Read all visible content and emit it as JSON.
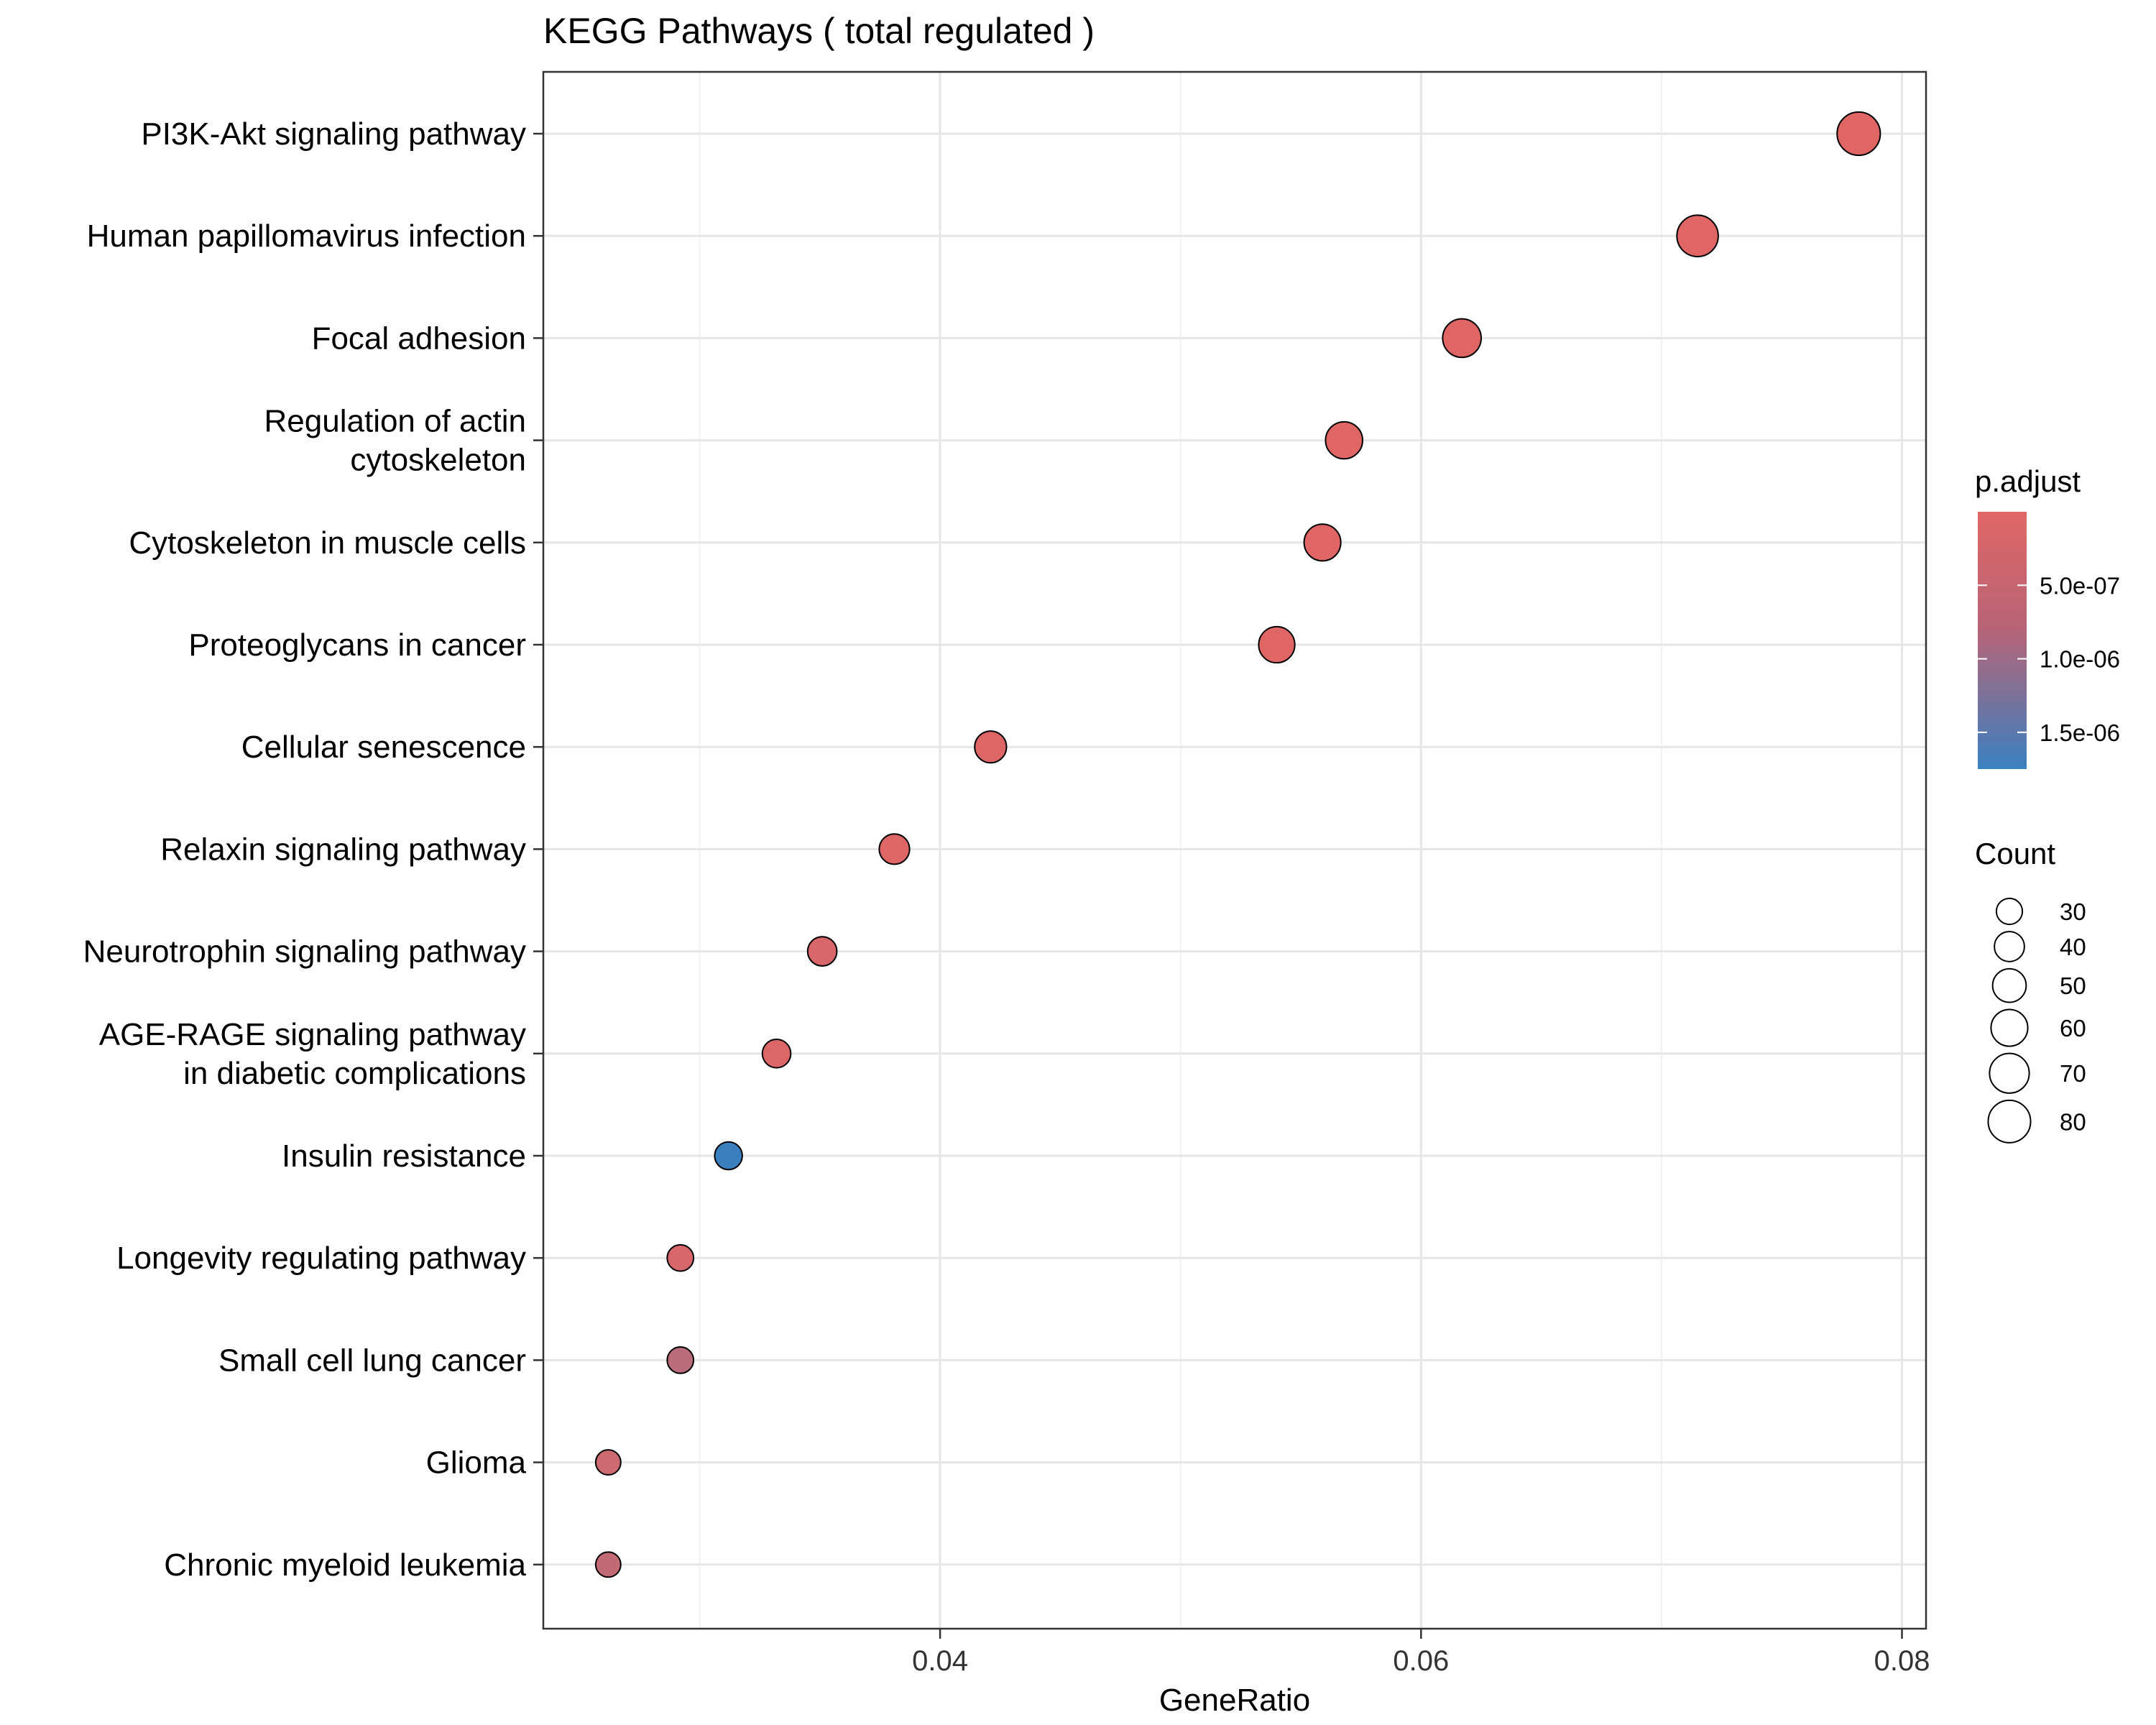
{
  "chart_data": {
    "type": "scatter",
    "title": "KEGG Pathways ( total regulated )",
    "xlabel": "GeneRatio",
    "ylabel": "",
    "xlim": [
      0.0235,
      0.081
    ],
    "xticks": [
      0.04,
      0.06,
      0.08
    ],
    "xtick_labels": [
      "0.04",
      "0.06",
      "0.08"
    ],
    "grid": true,
    "categories": [
      "PI3K-Akt signaling pathway",
      "Human papillomavirus infection",
      "Focal adhesion",
      "Regulation of actin\ncytoskeleton",
      "Cytoskeleton in muscle cells",
      "Proteoglycans in cancer",
      "Cellular senescence",
      "Relaxin signaling pathway",
      "Neurotrophin signaling pathway",
      "AGE-RAGE signaling pathway\nin diabetic complications",
      "Insulin resistance",
      "Longevity regulating pathway",
      "Small cell lung cancer",
      "Glioma",
      "Chronic myeloid leukemia"
    ],
    "points": [
      {
        "gene_ratio": 0.0782,
        "count": 83,
        "p_adjust": 1e-10
      },
      {
        "gene_ratio": 0.0715,
        "count": 76,
        "p_adjust": 1e-10
      },
      {
        "gene_ratio": 0.0617,
        "count": 66,
        "p_adjust": 1e-10
      },
      {
        "gene_ratio": 0.0568,
        "count": 61,
        "p_adjust": 1e-10
      },
      {
        "gene_ratio": 0.0559,
        "count": 60,
        "p_adjust": 1e-10
      },
      {
        "gene_ratio": 0.054,
        "count": 58,
        "p_adjust": 1e-10
      },
      {
        "gene_ratio": 0.0421,
        "count": 45,
        "p_adjust": 2e-08
      },
      {
        "gene_ratio": 0.0381,
        "count": 41,
        "p_adjust": 1e-08
      },
      {
        "gene_ratio": 0.0351,
        "count": 38,
        "p_adjust": 1e-07
      },
      {
        "gene_ratio": 0.0332,
        "count": 36,
        "p_adjust": 3e-08
      },
      {
        "gene_ratio": 0.0312,
        "count": 34,
        "p_adjust": 1.8e-06
      },
      {
        "gene_ratio": 0.0292,
        "count": 31,
        "p_adjust": 1e-07
      },
      {
        "gene_ratio": 0.0292,
        "count": 31,
        "p_adjust": 4e-07
      },
      {
        "gene_ratio": 0.0262,
        "count": 28,
        "p_adjust": 2e-07
      },
      {
        "gene_ratio": 0.0262,
        "count": 28,
        "p_adjust": 3e-07
      }
    ],
    "color_legend": {
      "title": "p.adjust",
      "range": [
        0,
        1.75e-06
      ],
      "ticks": [
        5e-07,
        1e-06,
        1.5e-06
      ],
      "tick_labels": [
        "5.0e-07",
        "1.0e-06",
        "1.5e-06"
      ],
      "low_color": "#E06666",
      "high_color": "#3A80C0"
    },
    "size_legend": {
      "title": "Count",
      "values": [
        30,
        40,
        50,
        60,
        70,
        80
      ],
      "labels": [
        "30",
        "40",
        "50",
        "60",
        "70",
        "80"
      ]
    }
  }
}
